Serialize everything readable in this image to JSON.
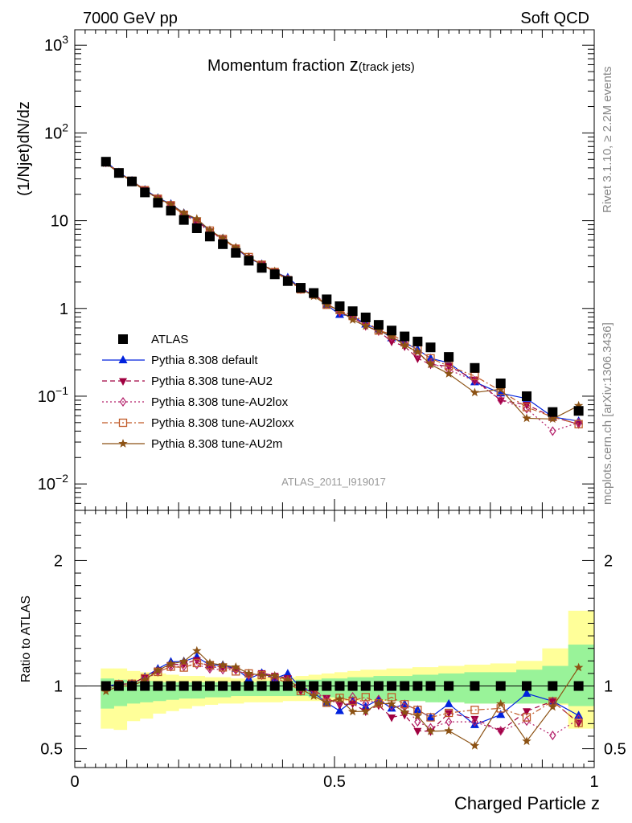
{
  "header": {
    "left": "7000 GeV pp",
    "right": "Soft QCD"
  },
  "side_labels": {
    "rivet": "Rivet 3.1.10, ≥ 2.2M events",
    "mcplots": "mcplots.cern.ch [arXiv:1306.3436]"
  },
  "colors": {
    "atlas": "#000000",
    "default": "#0022dd",
    "au2": "#a00040",
    "au2lox": "#b4206a",
    "au2loxx": "#c05a28",
    "au2m": "#8c5214",
    "band_inner": "#99f399",
    "band_outer": "#ffff99"
  },
  "chart_data": [
    {
      "type": "scatter",
      "title": "Momentum fraction z(track jets)",
      "title_main": "Momentum fraction ",
      "title_z": "z",
      "title_sub": "(track jets)",
      "ylabel": "(1/Njet)dN/dz",
      "xlabel": "",
      "yscale": "log",
      "xlim": [
        0,
        1
      ],
      "ylim": [
        0.005,
        1500
      ],
      "y_ticks": [
        {
          "v": 1000,
          "base": "10",
          "exp": "3"
        },
        {
          "v": 100,
          "base": "10",
          "exp": "2"
        },
        {
          "v": 10,
          "base": "10",
          "exp": ""
        },
        {
          "v": 1,
          "base": "1",
          "exp": ""
        },
        {
          "v": 0.1,
          "base": "10",
          "exp": "−1"
        },
        {
          "v": 0.01,
          "base": "10",
          "exp": "−2"
        }
      ],
      "analysis_label": "ATLAS_2011_I919017",
      "x": [
        0.06,
        0.085,
        0.11,
        0.135,
        0.16,
        0.185,
        0.21,
        0.235,
        0.26,
        0.285,
        0.31,
        0.335,
        0.36,
        0.385,
        0.41,
        0.435,
        0.46,
        0.485,
        0.51,
        0.535,
        0.56,
        0.585,
        0.61,
        0.635,
        0.66,
        0.685,
        0.72,
        0.77,
        0.82,
        0.87,
        0.92,
        0.97
      ],
      "series": [
        {
          "name": "ATLAS",
          "key": "atlas",
          "marker": "square",
          "line": "none",
          "values": [
            47,
            35,
            28,
            21,
            16,
            13,
            10.2,
            8.2,
            6.6,
            5.4,
            4.3,
            3.5,
            2.9,
            2.45,
            2.05,
            1.72,
            1.5,
            1.27,
            1.06,
            0.93,
            0.79,
            0.65,
            0.56,
            0.48,
            0.42,
            0.36,
            0.28,
            0.21,
            0.14,
            0.1,
            0.066,
            0.068
          ]
        },
        {
          "name": "Pythia 8.308 default",
          "key": "default",
          "marker": "triangle-up",
          "line": "solid",
          "values": [
            47,
            35.5,
            28.5,
            22.5,
            18.2,
            15.5,
            12.2,
            10.1,
            7.7,
            6.3,
            4.9,
            3.7,
            3.2,
            2.6,
            2.25,
            1.7,
            1.42,
            1.1,
            0.85,
            0.82,
            0.66,
            0.58,
            0.46,
            0.41,
            0.34,
            0.27,
            0.24,
            0.145,
            0.108,
            0.094,
            0.058,
            0.052
          ]
        },
        {
          "name": "Pythia 8.308 tune-AU2",
          "key": "au2",
          "marker": "triangle-down",
          "line": "dashed",
          "values": [
            46.5,
            35.5,
            28.5,
            22.5,
            18,
            15.2,
            12,
            9.9,
            7.6,
            6.2,
            4.9,
            3.8,
            3.2,
            2.65,
            2.18,
            1.65,
            1.45,
            1.15,
            0.9,
            0.8,
            0.63,
            0.55,
            0.42,
            0.37,
            0.27,
            0.23,
            0.22,
            0.155,
            0.09,
            0.08,
            0.058,
            0.048
          ]
        },
        {
          "name": "Pythia 8.308 tune-AU2lox",
          "key": "au2lox",
          "marker": "diamond",
          "line": "dotted",
          "values": [
            46,
            35,
            28,
            22,
            17.8,
            15,
            11.8,
            9.6,
            7.5,
            6.1,
            4.85,
            3.8,
            3.15,
            2.6,
            2.15,
            1.7,
            1.45,
            1.13,
            0.92,
            0.85,
            0.68,
            0.58,
            0.47,
            0.4,
            0.3,
            0.24,
            0.2,
            0.15,
            0.09,
            0.072,
            0.04,
            0.05
          ]
        },
        {
          "name": "Pythia 8.308 tune-AU2loxx",
          "key": "au2loxx",
          "marker": "square-open",
          "line": "dashdot",
          "values": [
            46.5,
            35.5,
            28.5,
            22.3,
            17.8,
            15,
            11.7,
            9.7,
            7.7,
            6.2,
            4.8,
            3.85,
            3.15,
            2.6,
            2.1,
            1.65,
            1.45,
            1.1,
            0.96,
            0.82,
            0.72,
            0.56,
            0.51,
            0.41,
            0.34,
            0.27,
            0.22,
            0.17,
            0.115,
            0.075,
            0.058,
            0.048
          ]
        },
        {
          "name": "Pythia 8.308 tune-AU2m",
          "key": "au2m",
          "marker": "star",
          "line": "solid",
          "values": [
            45,
            35,
            28,
            22,
            18,
            15.3,
            12.2,
            10.5,
            7.8,
            6.3,
            4.95,
            3.85,
            3.15,
            2.65,
            2.15,
            1.68,
            1.38,
            1.1,
            0.95,
            0.74,
            0.63,
            0.56,
            0.48,
            0.38,
            0.32,
            0.23,
            0.18,
            0.11,
            0.12,
            0.056,
            0.055,
            0.078
          ]
        }
      ]
    },
    {
      "type": "scatter",
      "title": "",
      "ylabel": "Ratio to ATLAS",
      "xlabel": "Charged Particle z",
      "xlim": [
        0,
        1
      ],
      "ylim": [
        0.35,
        2.4
      ],
      "y_ticks": [
        0.5,
        1,
        2
      ],
      "y_tick_labels": [
        "0.5",
        "1",
        "2"
      ],
      "x_ticks": [
        0,
        0.5,
        1
      ],
      "x_tick_labels": [
        "0",
        "0.5",
        "1"
      ],
      "reference_line": 1,
      "band_edges": [
        0.05,
        0.075,
        0.1,
        0.125,
        0.15,
        0.175,
        0.2,
        0.225,
        0.25,
        0.275,
        0.3,
        0.325,
        0.35,
        0.375,
        0.4,
        0.425,
        0.45,
        0.475,
        0.5,
        0.525,
        0.55,
        0.575,
        0.6,
        0.625,
        0.65,
        0.675,
        0.7,
        0.75,
        0.8,
        0.85,
        0.9,
        0.95,
        1.0
      ],
      "band_inner": [
        [
          0.82,
          1.06
        ],
        [
          0.84,
          1.05
        ],
        [
          0.86,
          1.04
        ],
        [
          0.87,
          1.04
        ],
        [
          0.88,
          1.03
        ],
        [
          0.89,
          1.03
        ],
        [
          0.9,
          1.03
        ],
        [
          0.9,
          1.03
        ],
        [
          0.91,
          1.03
        ],
        [
          0.91,
          1.03
        ],
        [
          0.92,
          1.03
        ],
        [
          0.92,
          1.03
        ],
        [
          0.92,
          1.04
        ],
        [
          0.92,
          1.04
        ],
        [
          0.92,
          1.04
        ],
        [
          0.92,
          1.05
        ],
        [
          0.91,
          1.05
        ],
        [
          0.91,
          1.06
        ],
        [
          0.9,
          1.06
        ],
        [
          0.9,
          1.07
        ],
        [
          0.89,
          1.07
        ],
        [
          0.89,
          1.08
        ],
        [
          0.88,
          1.08
        ],
        [
          0.88,
          1.08
        ],
        [
          0.88,
          1.09
        ],
        [
          0.87,
          1.09
        ],
        [
          0.87,
          1.1
        ],
        [
          0.86,
          1.11
        ],
        [
          0.86,
          1.11
        ],
        [
          0.86,
          1.13
        ],
        [
          0.86,
          1.16
        ],
        [
          0.84,
          1.33
        ]
      ],
      "band_outer": [
        [
          0.66,
          1.14
        ],
        [
          0.65,
          1.14
        ],
        [
          0.72,
          1.12
        ],
        [
          0.74,
          1.11
        ],
        [
          0.78,
          1.1
        ],
        [
          0.8,
          1.09
        ],
        [
          0.82,
          1.08
        ],
        [
          0.84,
          1.08
        ],
        [
          0.85,
          1.07
        ],
        [
          0.86,
          1.07
        ],
        [
          0.86,
          1.06
        ],
        [
          0.87,
          1.06
        ],
        [
          0.87,
          1.07
        ],
        [
          0.87,
          1.07
        ],
        [
          0.88,
          1.07
        ],
        [
          0.88,
          1.08
        ],
        [
          0.88,
          1.09
        ],
        [
          0.88,
          1.1
        ],
        [
          0.88,
          1.11
        ],
        [
          0.88,
          1.12
        ],
        [
          0.88,
          1.13
        ],
        [
          0.88,
          1.13
        ],
        [
          0.88,
          1.14
        ],
        [
          0.88,
          1.14
        ],
        [
          0.88,
          1.15
        ],
        [
          0.88,
          1.15
        ],
        [
          0.87,
          1.16
        ],
        [
          0.86,
          1.17
        ],
        [
          0.86,
          1.18
        ],
        [
          0.86,
          1.2
        ],
        [
          0.85,
          1.3
        ],
        [
          0.66,
          1.6
        ]
      ]
    }
  ]
}
